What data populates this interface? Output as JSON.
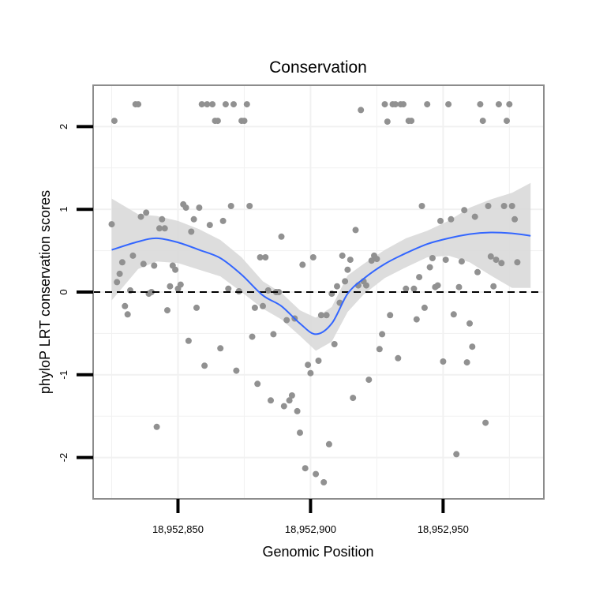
{
  "chart_data": {
    "type": "scatter",
    "title": "Conservation",
    "xlabel": "Genomic Position",
    "ylabel": "phyloP LRT conservation scores",
    "xlim": [
      18952818,
      18952988
    ],
    "ylim": [
      -2.5,
      2.5
    ],
    "x_ticks": [
      {
        "value": 18952850,
        "label": "18,952,850"
      },
      {
        "value": 18952900,
        "label": "18,952,900"
      },
      {
        "value": 18952950,
        "label": "18,952,950"
      }
    ],
    "y_ticks": [
      {
        "value": -2,
        "label": "-2"
      },
      {
        "value": -1,
        "label": "-1"
      },
      {
        "value": 0,
        "label": "0"
      },
      {
        "value": 1,
        "label": "1"
      },
      {
        "value": 2,
        "label": "2"
      }
    ],
    "grid": true,
    "reference_line": {
      "y": 0,
      "style": "dashed"
    },
    "colors": {
      "points": "#919191",
      "smooth": "#3366ff",
      "band": "#d9d9d9",
      "grid": "#f1f1f1",
      "panel_border": "#8c8c8c"
    },
    "series": [
      {
        "name": "phyloP scores",
        "points": [
          [
            18952825,
            0.82
          ],
          [
            18952826,
            2.07
          ],
          [
            18952827,
            0.12
          ],
          [
            18952828,
            0.22
          ],
          [
            18952829,
            0.36
          ],
          [
            18952830,
            -0.17
          ],
          [
            18952831,
            -0.27
          ],
          [
            18952832,
            0.02
          ],
          [
            18952833,
            0.44
          ],
          [
            18952834,
            2.27
          ],
          [
            18952835,
            2.27
          ],
          [
            18952836,
            0.91
          ],
          [
            18952837,
            0.34
          ],
          [
            18952838,
            0.96
          ],
          [
            18952839,
            -0.02
          ],
          [
            18952840,
            0.0
          ],
          [
            18952841,
            0.32
          ],
          [
            18952842,
            -1.63
          ],
          [
            18952843,
            0.77
          ],
          [
            18952844,
            0.88
          ],
          [
            18952845,
            0.77
          ],
          [
            18952846,
            -0.22
          ],
          [
            18952847,
            0.07
          ],
          [
            18952848,
            0.32
          ],
          [
            18952849,
            0.27
          ],
          [
            18952850,
            0.04
          ],
          [
            18952851,
            0.09
          ],
          [
            18952852,
            1.06
          ],
          [
            18952853,
            1.02
          ],
          [
            18952854,
            -0.59
          ],
          [
            18952855,
            0.73
          ],
          [
            18952856,
            0.88
          ],
          [
            18952857,
            -0.19
          ],
          [
            18952858,
            1.02
          ],
          [
            18952859,
            2.27
          ],
          [
            18952860,
            -0.89
          ],
          [
            18952861,
            2.27
          ],
          [
            18952862,
            0.81
          ],
          [
            18952863,
            2.27
          ],
          [
            18952864,
            2.07
          ],
          [
            18952865,
            2.07
          ],
          [
            18952866,
            -0.68
          ],
          [
            18952867,
            0.86
          ],
          [
            18952868,
            2.27
          ],
          [
            18952869,
            0.04
          ],
          [
            18952870,
            1.04
          ],
          [
            18952871,
            2.27
          ],
          [
            18952872,
            -0.95
          ],
          [
            18952873,
            0.01
          ],
          [
            18952874,
            2.07
          ],
          [
            18952875,
            2.07
          ],
          [
            18952876,
            2.27
          ],
          [
            18952877,
            1.04
          ],
          [
            18952878,
            -0.54
          ],
          [
            18952879,
            -0.19
          ],
          [
            18952880,
            -1.11
          ],
          [
            18952881,
            0.42
          ],
          [
            18952882,
            -0.17
          ],
          [
            18952883,
            0.42
          ],
          [
            18952884,
            0.02
          ],
          [
            18952885,
            -1.31
          ],
          [
            18952886,
            -0.51
          ],
          [
            18952887,
            0.0
          ],
          [
            18952888,
            0.0
          ],
          [
            18952889,
            0.67
          ],
          [
            18952890,
            -1.38
          ],
          [
            18952891,
            -0.34
          ],
          [
            18952892,
            -1.31
          ],
          [
            18952893,
            -1.25
          ],
          [
            18952894,
            -0.32
          ],
          [
            18952895,
            -1.44
          ],
          [
            18952896,
            -1.7
          ],
          [
            18952897,
            0.33
          ],
          [
            18952898,
            -2.13
          ],
          [
            18952899,
            -0.88
          ],
          [
            18952900,
            -0.98
          ],
          [
            18952901,
            0.42
          ],
          [
            18952902,
            -2.2
          ],
          [
            18952903,
            -0.83
          ],
          [
            18952904,
            -0.28
          ],
          [
            18952905,
            -2.3
          ],
          [
            18952906,
            -0.28
          ],
          [
            18952907,
            -1.84
          ],
          [
            18952908,
            -0.02
          ],
          [
            18952909,
            -0.63
          ],
          [
            18952910,
            0.07
          ],
          [
            18952911,
            -0.13
          ],
          [
            18952912,
            0.44
          ],
          [
            18952913,
            0.13
          ],
          [
            18952914,
            0.27
          ],
          [
            18952915,
            0.39
          ],
          [
            18952916,
            -1.28
          ],
          [
            18952917,
            0.75
          ],
          [
            18952918,
            0.08
          ],
          [
            18952919,
            2.2
          ],
          [
            18952920,
            0.13
          ],
          [
            18952921,
            0.08
          ],
          [
            18952922,
            -1.06
          ],
          [
            18952923,
            0.38
          ],
          [
            18952924,
            0.44
          ],
          [
            18952925,
            0.4
          ],
          [
            18952926,
            -0.69
          ],
          [
            18952927,
            -0.51
          ],
          [
            18952928,
            2.27
          ],
          [
            18952929,
            2.06
          ],
          [
            18952930,
            -0.28
          ],
          [
            18952931,
            2.27
          ],
          [
            18952932,
            2.27
          ],
          [
            18952933,
            -0.8
          ],
          [
            18952934,
            2.27
          ],
          [
            18952935,
            2.27
          ],
          [
            18952936,
            0.04
          ],
          [
            18952937,
            2.07
          ],
          [
            18952938,
            2.07
          ],
          [
            18952939,
            0.04
          ],
          [
            18952940,
            -0.33
          ],
          [
            18952941,
            0.18
          ],
          [
            18952942,
            1.04
          ],
          [
            18952943,
            -0.19
          ],
          [
            18952944,
            2.27
          ],
          [
            18952945,
            0.3
          ],
          [
            18952946,
            0.41
          ],
          [
            18952947,
            0.06
          ],
          [
            18952948,
            0.08
          ],
          [
            18952949,
            0.86
          ],
          [
            18952950,
            -0.84
          ],
          [
            18952951,
            0.39
          ],
          [
            18952952,
            2.27
          ],
          [
            18952953,
            0.88
          ],
          [
            18952954,
            -0.27
          ],
          [
            18952955,
            -1.96
          ],
          [
            18952956,
            0.06
          ],
          [
            18952957,
            0.37
          ],
          [
            18952958,
            0.99
          ],
          [
            18952959,
            -0.85
          ],
          [
            18952960,
            -0.38
          ],
          [
            18952961,
            -0.66
          ],
          [
            18952962,
            0.91
          ],
          [
            18952963,
            0.24
          ],
          [
            18952964,
            2.27
          ],
          [
            18952965,
            2.07
          ],
          [
            18952966,
            -1.58
          ],
          [
            18952967,
            1.04
          ],
          [
            18952968,
            0.43
          ],
          [
            18952969,
            0.07
          ],
          [
            18952970,
            0.39
          ],
          [
            18952971,
            2.27
          ],
          [
            18952972,
            0.35
          ],
          [
            18952973,
            1.04
          ],
          [
            18952974,
            2.07
          ],
          [
            18952975,
            2.27
          ],
          [
            18952976,
            1.04
          ],
          [
            18952977,
            0.88
          ],
          [
            18952978,
            0.36
          ]
        ]
      },
      {
        "name": "loess smooth",
        "x": [
          18952825,
          18952835,
          18952842,
          18952850,
          18952858,
          18952866,
          18952874,
          18952882,
          18952889,
          18952896,
          18952902,
          18952908,
          18952914,
          18952920,
          18952928,
          18952936,
          18952944,
          18952952,
          18952960,
          18952968,
          18952976,
          18952983
        ],
        "y": [
          0.51,
          0.61,
          0.65,
          0.6,
          0.51,
          0.41,
          0.21,
          -0.04,
          -0.17,
          -0.38,
          -0.51,
          -0.38,
          -0.02,
          0.16,
          0.34,
          0.47,
          0.58,
          0.65,
          0.7,
          0.72,
          0.71,
          0.68
        ],
        "lower": [
          -0.1,
          0.28,
          0.37,
          0.35,
          0.27,
          0.19,
          0.0,
          -0.2,
          -0.33,
          -0.53,
          -0.71,
          -0.6,
          -0.24,
          -0.03,
          0.17,
          0.3,
          0.42,
          0.44,
          0.36,
          0.2,
          0.05,
          0.05
        ],
        "upper": [
          1.13,
          0.94,
          0.92,
          0.86,
          0.76,
          0.63,
          0.42,
          0.13,
          -0.01,
          -0.22,
          -0.31,
          -0.18,
          0.2,
          0.34,
          0.51,
          0.65,
          0.74,
          0.86,
          1.02,
          1.12,
          1.2,
          1.32
        ]
      }
    ]
  }
}
